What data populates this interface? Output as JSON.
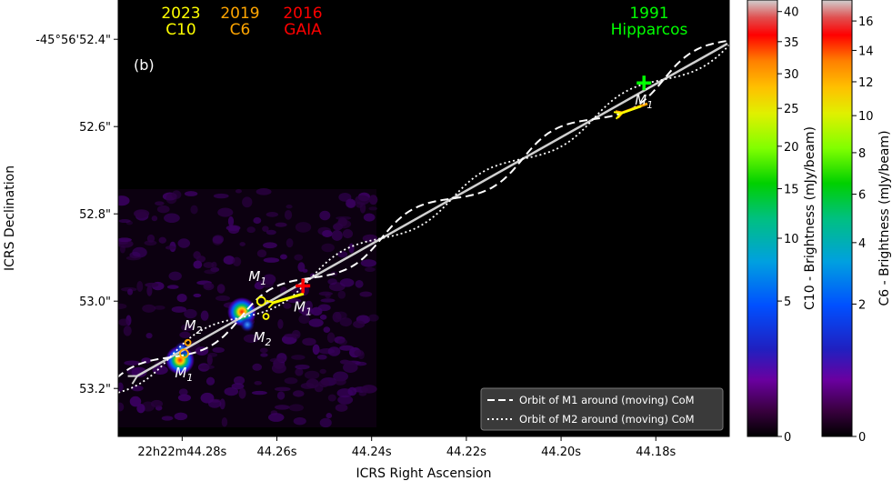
{
  "chart_data": {
    "type": "scatter",
    "panel_label": "(b)",
    "xlabel": "ICRS Right Ascension",
    "ylabel": "ICRS Declination",
    "x_ticks": [
      {
        "label": "22h22m44.28s",
        "ra_sec": 44.28
      },
      {
        "label": "44.26s",
        "ra_sec": 44.26
      },
      {
        "label": "44.24s",
        "ra_sec": 44.24
      },
      {
        "label": "44.22s",
        "ra_sec": 44.22
      },
      {
        "label": "44.20s",
        "ra_sec": 44.2
      },
      {
        "label": "44.18s",
        "ra_sec": 44.18
      }
    ],
    "y_ticks": [
      {
        "label": "-45°56'52.4\"",
        "dec_arcsec": 52.4
      },
      {
        "label": "52.6\"",
        "dec_arcsec": 52.6
      },
      {
        "label": "52.8\"",
        "dec_arcsec": 52.8
      },
      {
        "label": "53.0\"",
        "dec_arcsec": 53.0
      },
      {
        "label": "53.2\"",
        "dec_arcsec": 53.2
      }
    ],
    "epochs": [
      {
        "year": "2023",
        "name": "C10",
        "color": "#ffff00"
      },
      {
        "year": "2019",
        "name": "C6",
        "color": "#ffa500"
      },
      {
        "year": "2016",
        "name": "GAIA",
        "color": "#ff0000"
      },
      {
        "year": "1991",
        "name": "Hipparcos",
        "color": "#00ff00"
      }
    ],
    "positions": [
      {
        "label": "M1",
        "epoch": "Hipparcos",
        "ra_sec": 44.1825,
        "dec_arcsec": 52.5,
        "marker": "+",
        "color": "#00ff00"
      },
      {
        "label": "M1",
        "epoch": "GAIA",
        "ra_sec": 44.2545,
        "dec_arcsec": 52.965,
        "marker": "+",
        "color": "#ff0000"
      },
      {
        "label": "M1",
        "epoch": "C10",
        "ra_sec": 44.2633,
        "dec_arcsec": 53.0,
        "marker": "o",
        "color": "#ffff00"
      },
      {
        "label": "M2",
        "epoch": "C10",
        "ra_sec": 44.2623,
        "dec_arcsec": 53.035,
        "marker": "o",
        "color": "#ffff00"
      },
      {
        "label": "M1",
        "epoch": "C6",
        "ra_sec": 44.2796,
        "dec_arcsec": 53.12,
        "marker": "o",
        "color": "#ffa500"
      },
      {
        "label": "M2",
        "epoch": "C6",
        "ra_sec": 44.2788,
        "dec_arcsec": 53.095,
        "marker": "o",
        "color": "#ffa500"
      }
    ],
    "legend": {
      "position": "bottom-right",
      "entries": [
        {
          "label": "Orbit of M1 around (moving) CoM",
          "style": "dashed"
        },
        {
          "label": "Orbit of M2 around (moving) CoM",
          "style": "dotted"
        }
      ]
    },
    "colorbars": [
      {
        "label": "C10 - Brightness (mJy/beam)",
        "ticks": [
          "0",
          "5",
          "10",
          "15",
          "20",
          "25",
          "30",
          "35",
          "40"
        ],
        "range": [
          0,
          42
        ],
        "scale": "nonlinear"
      },
      {
        "label": "C6 - Brightness (mJy/beam)",
        "ticks": [
          "0",
          "2",
          "4",
          "6",
          "8",
          "10",
          "12",
          "14",
          "16"
        ],
        "range": [
          0,
          17.5
        ],
        "scale": "nonlinear"
      }
    ],
    "xlim": [
      44.2935,
      44.1645
    ],
    "ylim": [
      53.31,
      52.31
    ],
    "grid": false,
    "colors": {
      "background": "#000000",
      "trajectory": "#d0d0d0",
      "orbits": "#ffffff",
      "arrows": "#ffff00"
    }
  }
}
